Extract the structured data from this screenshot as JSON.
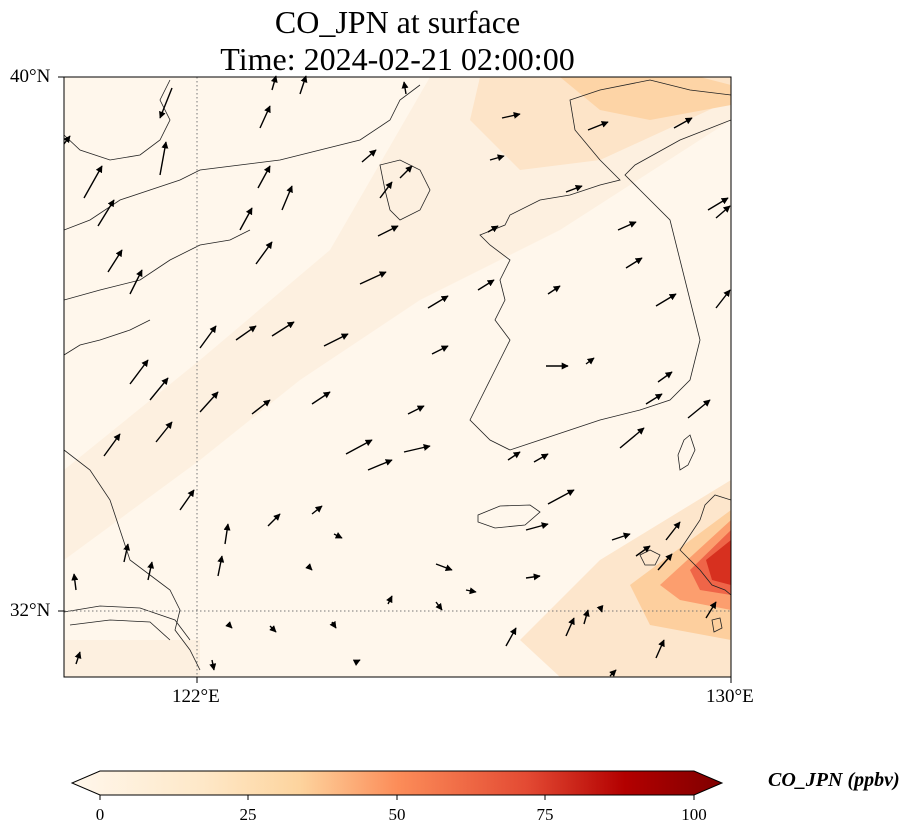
{
  "title": {
    "line1": "CO_JPN at surface",
    "line2": "Time: 2024-02-21 02:00:00"
  },
  "axes": {
    "lat_ticks": [
      "40°N",
      "32°N"
    ],
    "lon_ticks": [
      "122°E",
      "130°E"
    ],
    "lat_range": [
      31,
      40
    ],
    "lon_range": [
      120,
      130
    ],
    "gridlines": "dotted"
  },
  "colorbar": {
    "label": "CO_JPN (ppbv)",
    "ticks": [
      "0",
      "25",
      "50",
      "75",
      "100"
    ],
    "range": [
      0,
      100
    ],
    "colormap": "OrRd",
    "extend": "both"
  },
  "colors": {
    "low": "#fff7ec",
    "mid": "#fdd49e",
    "high": "#d7301f",
    "max": "#7f0000"
  }
}
